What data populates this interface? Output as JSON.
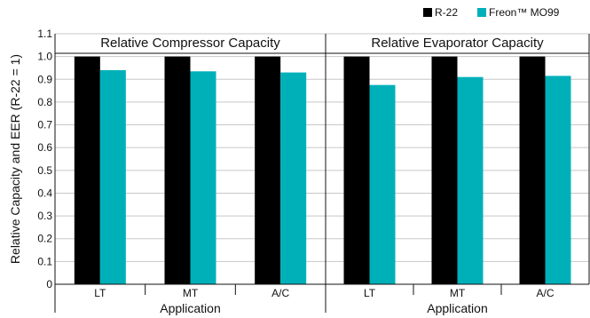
{
  "chart_data": {
    "type": "bar",
    "ylabel": "Relative Capacity and EER (R-22 = 1)",
    "ylim": [
      0,
      1.1
    ],
    "yticks": [
      "0",
      "0.1",
      "0.2",
      "0.3",
      "0.4",
      "0.5",
      "0.6",
      "0.7",
      "0.8",
      "0.9",
      "1.0",
      "1.1"
    ],
    "grid": true,
    "legend_position": "top-right",
    "legend": [
      {
        "name": "R-22",
        "color": "#000000"
      },
      {
        "name": "Freon™ MO99",
        "color": "#00b0b9"
      }
    ],
    "panels": [
      {
        "title": "Relative Compressor Capacity",
        "xlabel": "Application",
        "categories": [
          "LT",
          "MT",
          "A/C"
        ],
        "series": [
          {
            "name": "R-22",
            "values": [
              1.0,
              1.0,
              1.0
            ]
          },
          {
            "name": "Freon™ MO99",
            "values": [
              0.94,
              0.935,
              0.93
            ]
          }
        ]
      },
      {
        "title": "Relative Evaporator Capacity",
        "xlabel": "Application",
        "categories": [
          "LT",
          "MT",
          "A/C"
        ],
        "series": [
          {
            "name": "R-22",
            "values": [
              1.0,
              1.0,
              1.0
            ]
          },
          {
            "name": "Freon™ MO99",
            "values": [
              0.875,
              0.91,
              0.915
            ]
          }
        ]
      }
    ]
  }
}
